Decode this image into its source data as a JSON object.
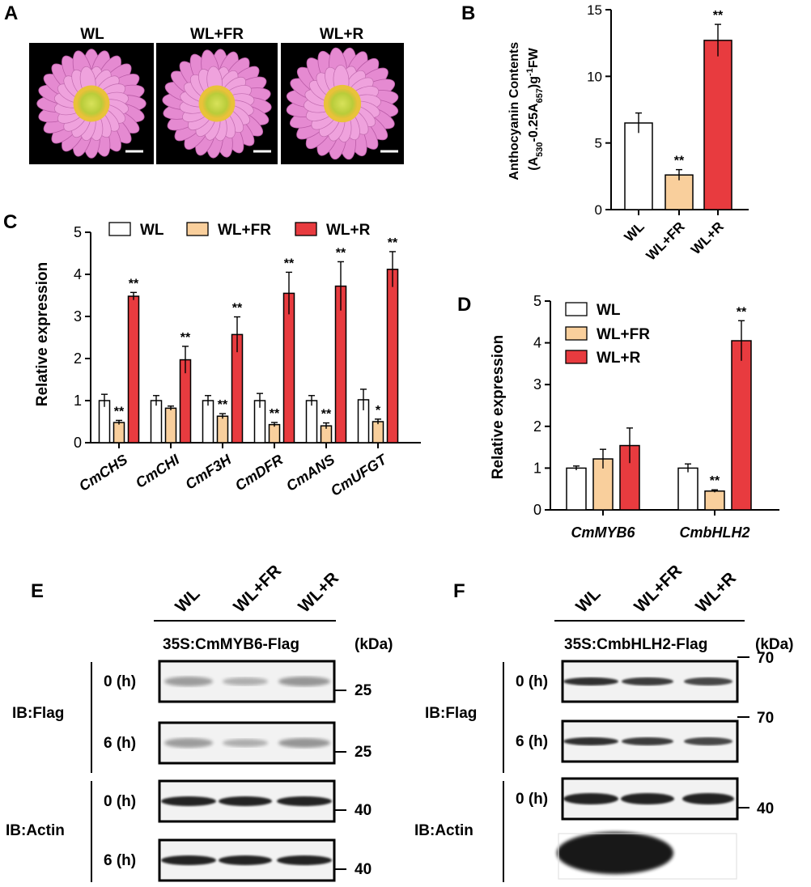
{
  "panels": {
    "A": "A",
    "B": "B",
    "C": "C",
    "D": "D",
    "E": "E",
    "F": "F"
  },
  "panel_a": {
    "labels": [
      "WL",
      "WL+FR",
      "WL+R"
    ]
  },
  "colors": {
    "WL": "#ffffff",
    "WL+FR": "#f9cf9c",
    "WL+R": "#e83b3f",
    "axis": "#000000",
    "petal": "#e58ad1",
    "center": "#c8d63d",
    "ring": "#e9c23a"
  },
  "chart_data": [
    {
      "panel": "B",
      "type": "bar",
      "ylabel_line1": "Anthocyanin Contents",
      "ylabel_line2_parts": [
        "(A",
        "530",
        "-0.25A",
        "657",
        ")g",
        "-1",
        "FW"
      ],
      "categories": [
        "WL",
        "WL+FR",
        "WL+R"
      ],
      "values": [
        6.5,
        2.6,
        12.7
      ],
      "errors": [
        0.75,
        0.4,
        1.2
      ],
      "sig": [
        "",
        "**",
        "**"
      ],
      "ylim": [
        0,
        15
      ],
      "yticks": [
        "0",
        "5",
        "10",
        "15"
      ],
      "colors": [
        "#ffffff",
        "#f9cf9c",
        "#e83b3f"
      ]
    },
    {
      "panel": "C",
      "type": "bar",
      "ylabel": "Relative expression",
      "legend": [
        "WL",
        "WL+FR",
        "WL+R"
      ],
      "categories": [
        "CmCHS",
        "CmCHI",
        "CmF3H",
        "CmDFR",
        "CmANS",
        "CmUFGT"
      ],
      "series": [
        {
          "name": "WL",
          "values": [
            1.0,
            1.0,
            1.0,
            1.0,
            1.0,
            1.02
          ],
          "errors": [
            0.15,
            0.12,
            0.12,
            0.17,
            0.12,
            0.25
          ],
          "sig": [
            "",
            "",
            "",
            "",
            "",
            ""
          ]
        },
        {
          "name": "WL+FR",
          "values": [
            0.48,
            0.82,
            0.63,
            0.43,
            0.4,
            0.5
          ],
          "errors": [
            0.05,
            0.05,
            0.06,
            0.05,
            0.07,
            0.06
          ],
          "sig": [
            "**",
            "",
            "**",
            "**",
            "**",
            "*"
          ]
        },
        {
          "name": "WL+R",
          "values": [
            3.48,
            1.97,
            2.57,
            3.55,
            3.72,
            4.12
          ],
          "errors": [
            0.09,
            0.32,
            0.42,
            0.5,
            0.58,
            0.42
          ],
          "sig": [
            "**",
            "**",
            "**",
            "**",
            "**",
            "**"
          ]
        }
      ],
      "ylim": [
        0,
        5
      ],
      "yticks": [
        "0",
        "1",
        "2",
        "3",
        "4",
        "5"
      ]
    },
    {
      "panel": "D",
      "type": "bar",
      "ylabel": "Relative expression",
      "legend": [
        "WL",
        "WL+FR",
        "WL+R"
      ],
      "categories": [
        "CmMYB6",
        "CmbHLH2"
      ],
      "series": [
        {
          "name": "WL",
          "values": [
            1.0,
            1.0
          ],
          "errors": [
            0.05,
            0.1
          ],
          "sig": [
            "",
            ""
          ]
        },
        {
          "name": "WL+FR",
          "values": [
            1.22,
            0.45
          ],
          "errors": [
            0.23,
            0.03
          ],
          "sig": [
            "",
            "**"
          ]
        },
        {
          "name": "WL+R",
          "values": [
            1.54,
            4.05
          ],
          "errors": [
            0.42,
            0.48
          ],
          "sig": [
            "",
            "**"
          ]
        }
      ],
      "ylim": [
        0,
        5
      ],
      "yticks": [
        "0",
        "1",
        "2",
        "3",
        "4",
        "5"
      ]
    }
  ],
  "panel_e": {
    "lanes": [
      "WL",
      "WL+FR",
      "WL+R"
    ],
    "construct": "35S:CmMYB6-Flag",
    "kda_header": "(kDa)",
    "group1": "IB:Flag",
    "group2": "IB:Actin",
    "rows": [
      {
        "time": "0 (h)",
        "kda": "25"
      },
      {
        "time": "6 (h)",
        "kda": "25"
      },
      {
        "time": "0 (h)",
        "kda": "40"
      },
      {
        "time": "6 (h)",
        "kda": "40"
      }
    ]
  },
  "panel_f": {
    "lanes": [
      "WL",
      "WL+FR",
      "WL+R"
    ],
    "construct": "35S:CmbHLH2-Flag",
    "kda_header": "(kDa)",
    "group1": "IB:Flag",
    "group2": "IB:Actin",
    "rows": [
      {
        "time": "0 (h)",
        "kda": "70"
      },
      {
        "time": "6 (h)",
        "kda": "70"
      },
      {
        "time": "0 (h)",
        "kda": "40"
      }
    ]
  }
}
